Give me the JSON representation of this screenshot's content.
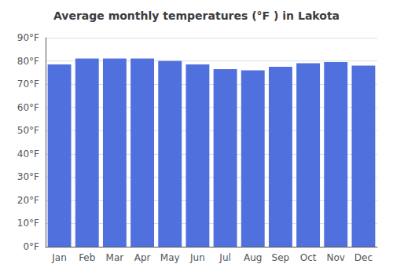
{
  "chart_data": {
    "type": "bar",
    "title": "Average monthly temperatures (°F ) in Lakota",
    "categories": [
      "Jan",
      "Feb",
      "Mar",
      "Apr",
      "May",
      "Jun",
      "Jul",
      "Aug",
      "Sep",
      "Oct",
      "Nov",
      "Dec"
    ],
    "values": [
      78.5,
      81.0,
      81.0,
      81.0,
      80.0,
      78.5,
      76.5,
      76.0,
      77.5,
      79.0,
      79.5,
      78.0
    ],
    "ylim": [
      0,
      90
    ],
    "yticks": [
      {
        "value": 0,
        "label": "0°F"
      },
      {
        "value": 10,
        "label": "10°F"
      },
      {
        "value": 20,
        "label": "20°F"
      },
      {
        "value": 30,
        "label": "30°F"
      },
      {
        "value": 40,
        "label": "40°F"
      },
      {
        "value": 50,
        "label": "50°F"
      },
      {
        "value": 60,
        "label": "60°F"
      },
      {
        "value": 70,
        "label": "70°F"
      },
      {
        "value": 80,
        "label": "80°F"
      },
      {
        "value": 90,
        "label": "90°F"
      }
    ],
    "grid": true
  }
}
